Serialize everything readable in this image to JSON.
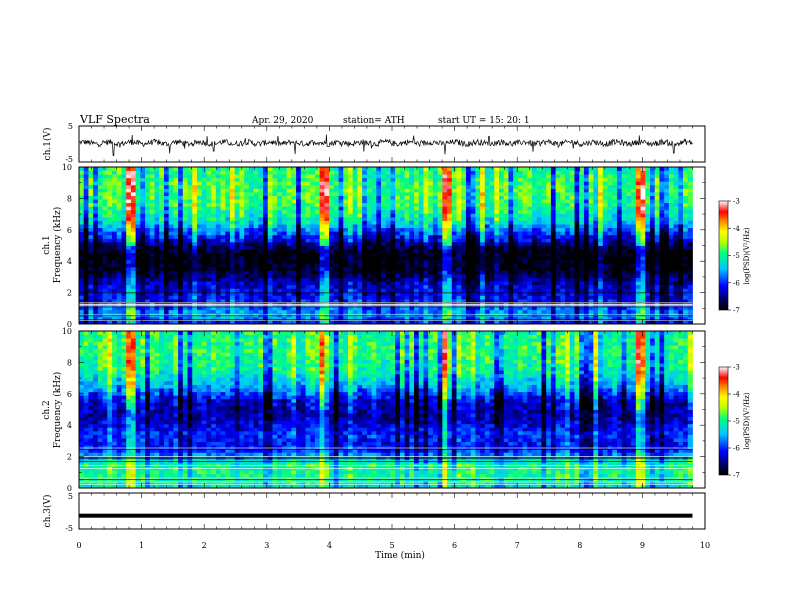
{
  "header": {
    "title": "VLF  Spectra",
    "date": "Apr. 29, 2020",
    "station": "station= ATH",
    "start": "start  UT  =    15: 20: 1"
  },
  "chart_data": [
    {
      "type": "line",
      "name": "ch1-waveform",
      "ylabel": "ch.1(V)",
      "ylim": [
        -5,
        5
      ],
      "y_ticks": [
        "5",
        "-5"
      ],
      "xlim": [
        0,
        10
      ],
      "data_extent_min": 9.8,
      "baseline": 0.3,
      "spikes": [
        {
          "x": 0.55,
          "y": -3.2
        },
        {
          "x": 0.85,
          "y": 2.5
        },
        {
          "x": 1.45,
          "y": -2.6
        },
        {
          "x": 2.05,
          "y": 2.2
        },
        {
          "x": 2.15,
          "y": -2.0
        },
        {
          "x": 3.45,
          "y": -2.8
        },
        {
          "x": 3.95,
          "y": 2.6
        },
        {
          "x": 4.55,
          "y": -2.1
        },
        {
          "x": 5.35,
          "y": 2.3
        },
        {
          "x": 5.85,
          "y": -2.9
        },
        {
          "x": 6.55,
          "y": 2.1
        },
        {
          "x": 7.25,
          "y": -2.2
        },
        {
          "x": 8.95,
          "y": 2.4
        },
        {
          "x": 9.5,
          "y": -2.5
        }
      ]
    },
    {
      "type": "heatmap",
      "name": "ch1-spectrogram",
      "ylabel": "ch.1\nFrequency  (kHz)",
      "xlim": [
        0,
        10
      ],
      "ylim": [
        0,
        10
      ],
      "y_ticks": [
        "10",
        "8",
        "6",
        "4",
        "2",
        "0"
      ],
      "data_extent_min": 9.8,
      "colorbar": {
        "label": "log(PSD)(V²/Hz)",
        "ticks": [
          "-3",
          "-4",
          "-5",
          "-6",
          "-7"
        ],
        "range": [
          -7,
          -3
        ]
      },
      "bright_events_min": [
        0.85,
        3.95,
        5.85,
        8.95
      ],
      "level_profile": [
        {
          "f_khz": 0,
          "log_psd": -6.2
        },
        {
          "f_khz": 0.5,
          "log_psd": -5.5
        },
        {
          "f_khz": 1.5,
          "log_psd": -6.1
        },
        {
          "f_khz": 2.5,
          "log_psd": -6.3
        },
        {
          "f_khz": 3.5,
          "log_psd": -6.9
        },
        {
          "f_khz": 4.5,
          "log_psd": -7.0
        },
        {
          "f_khz": 5.5,
          "log_psd": -6.2
        },
        {
          "f_khz": 6.5,
          "log_psd": -5.3
        },
        {
          "f_khz": 7.5,
          "log_psd": -4.9
        },
        {
          "f_khz": 8.5,
          "log_psd": -4.8
        },
        {
          "f_khz": 9.5,
          "log_psd": -4.9
        },
        {
          "f_khz": 10,
          "log_psd": -5.0
        }
      ]
    },
    {
      "type": "heatmap",
      "name": "ch2-spectrogram",
      "ylabel": "ch.2\nFrequency  (kHz)",
      "xlim": [
        0,
        10
      ],
      "ylim": [
        0,
        10
      ],
      "y_ticks": [
        "10",
        "8",
        "6",
        "4",
        "2",
        "0"
      ],
      "data_extent_min": 9.8,
      "colorbar": {
        "label": "log(PSD)(V²/Hz)",
        "ticks": [
          "-3",
          "-4",
          "-5",
          "-6",
          "-7"
        ],
        "range": [
          -7,
          -3
        ]
      },
      "bright_events_min": [
        0.85,
        3.95,
        5.85,
        8.95
      ],
      "level_profile": [
        {
          "f_khz": 0,
          "log_psd": -5.3
        },
        {
          "f_khz": 0.5,
          "log_psd": -5.0
        },
        {
          "f_khz": 1.5,
          "log_psd": -5.0
        },
        {
          "f_khz": 2.5,
          "log_psd": -6.1
        },
        {
          "f_khz": 3.5,
          "log_psd": -6.0
        },
        {
          "f_khz": 4.5,
          "log_psd": -6.4
        },
        {
          "f_khz": 5.5,
          "log_psd": -6.3
        },
        {
          "f_khz": 6.5,
          "log_psd": -5.5
        },
        {
          "f_khz": 7.5,
          "log_psd": -5.0
        },
        {
          "f_khz": 8.5,
          "log_psd": -4.9
        },
        {
          "f_khz": 9.5,
          "log_psd": -4.9
        },
        {
          "f_khz": 10,
          "log_psd": -5.0
        }
      ]
    },
    {
      "type": "line",
      "name": "ch3-waveform",
      "ylabel": "ch.3(V)",
      "ylim": [
        -5,
        5
      ],
      "y_ticks": [
        "5",
        "-5"
      ],
      "xlim": [
        0,
        10
      ],
      "data_extent_min": 9.8,
      "baseline": -1.3
    }
  ],
  "x_axis": {
    "label": "Time  (min)",
    "ticks": [
      "0",
      "1",
      "2",
      "3",
      "4",
      "5",
      "6",
      "7",
      "8",
      "9",
      "10"
    ]
  }
}
